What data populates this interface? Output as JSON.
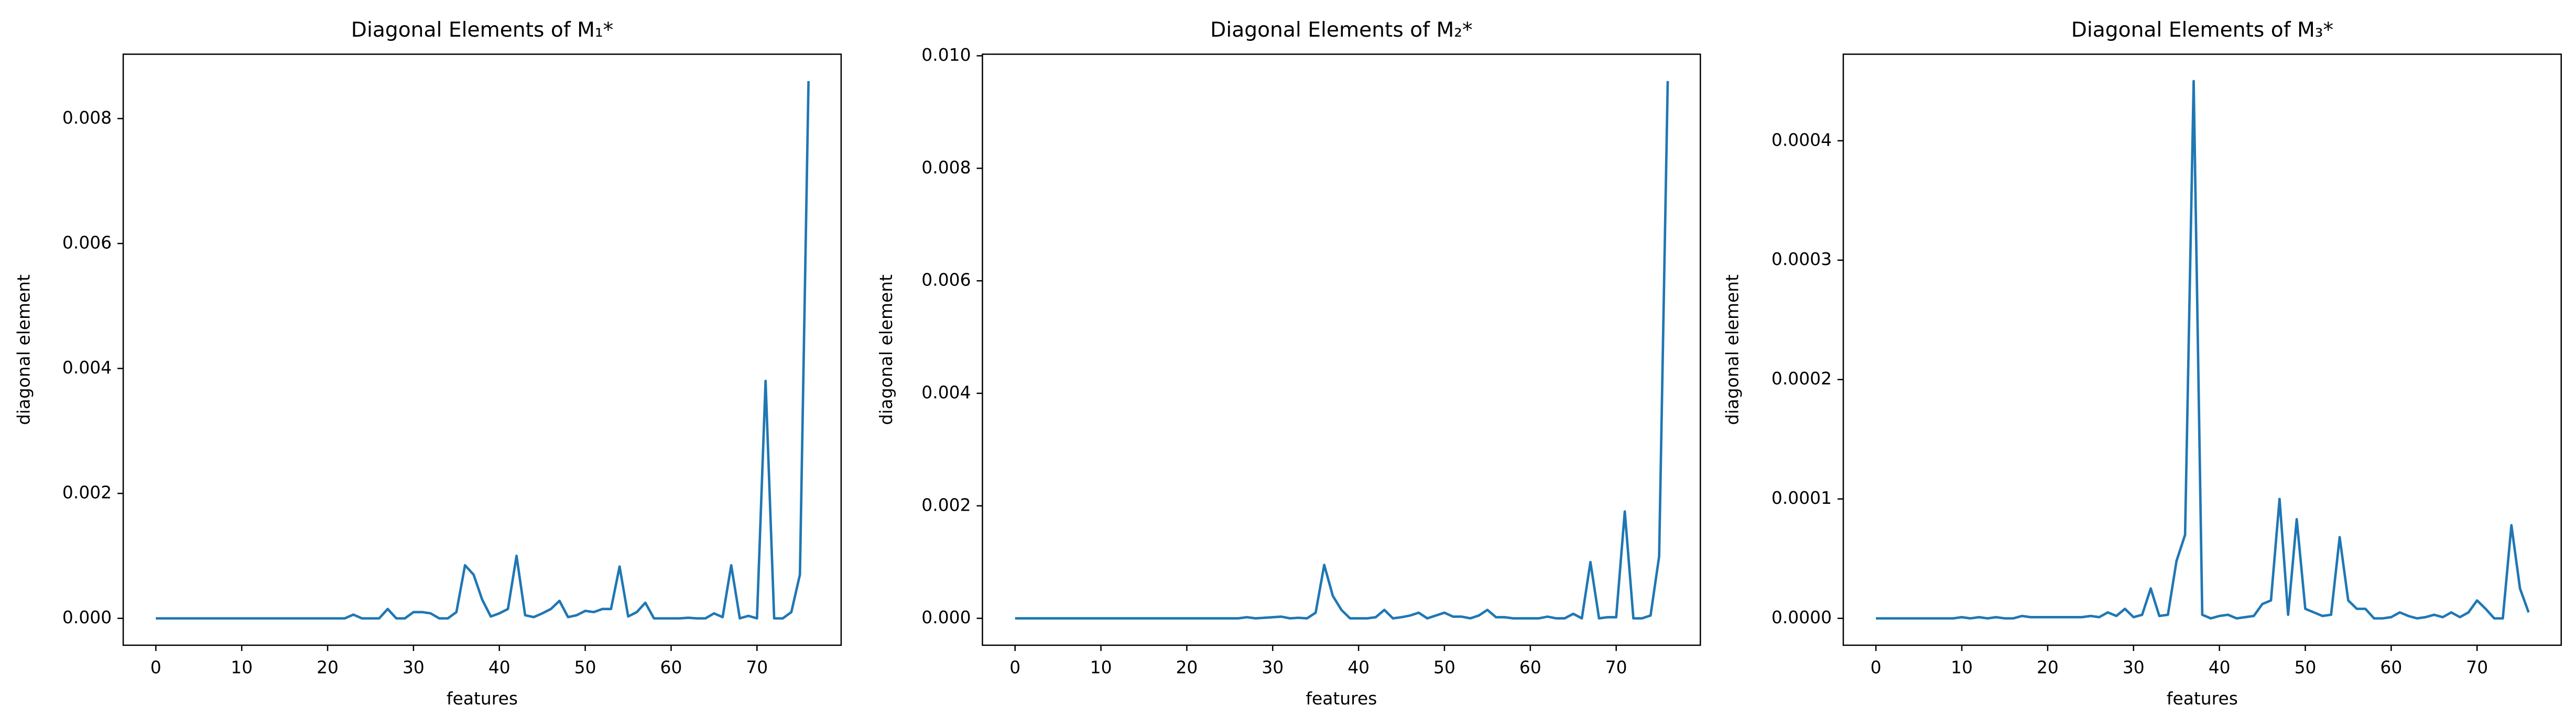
{
  "chart_data": [
    {
      "type": "line",
      "title": "Diagonal Elements of M₁*",
      "xlabel": "features",
      "ylabel": "diagonal element",
      "color": "#1f77b4",
      "x": [
        0,
        1,
        2,
        3,
        4,
        5,
        6,
        7,
        8,
        9,
        10,
        11,
        12,
        13,
        14,
        15,
        16,
        17,
        18,
        19,
        20,
        21,
        22,
        23,
        24,
        25,
        26,
        27,
        28,
        29,
        30,
        31,
        32,
        33,
        34,
        35,
        36,
        37,
        38,
        39,
        40,
        41,
        42,
        43,
        44,
        45,
        46,
        47,
        48,
        49,
        50,
        51,
        52,
        53,
        54,
        55,
        56,
        57,
        58,
        59,
        60,
        61,
        62,
        63,
        64,
        65,
        66,
        67,
        68,
        69,
        70,
        71,
        72,
        73,
        74,
        75,
        76
      ],
      "values": [
        0,
        0,
        0,
        0,
        0,
        0,
        0,
        0,
        0,
        0,
        0,
        0,
        0,
        0,
        0,
        0,
        0,
        0,
        0,
        0,
        0,
        0,
        0,
        6e-05,
        0,
        0,
        0,
        0.00015,
        0,
        0,
        0.0001,
        0.0001,
        8e-05,
        0,
        0,
        0.0001,
        0.00085,
        0.0007,
        0.0003,
        3e-05,
        8e-05,
        0.00015,
        0.001,
        5e-05,
        2e-05,
        8e-05,
        0.00015,
        0.00028,
        2e-05,
        5e-05,
        0.00012,
        0.0001,
        0.00015,
        0.00015,
        0.00083,
        3e-05,
        0.0001,
        0.00025,
        0,
        0,
        0,
        0,
        1e-05,
        0,
        0,
        8e-05,
        2e-05,
        0.00085,
        0,
        4e-05,
        0,
        0.0038,
        0,
        0,
        0.0001,
        0.0007,
        0.0086
      ],
      "xlim": [
        -3.8,
        79.8
      ],
      "xticks": [
        0,
        10,
        20,
        30,
        40,
        50,
        60,
        70
      ],
      "ylim": [
        -0.00043,
        0.00903
      ],
      "yticks": [
        {
          "value": 0,
          "label": "0.000"
        },
        0.002,
        0.004,
        0.006,
        0.008
      ]
    },
    {
      "type": "line",
      "title": "Diagonal Elements of M₂*",
      "xlabel": "features",
      "ylabel": "diagonal element",
      "color": "#1f77b4",
      "x": [
        0,
        1,
        2,
        3,
        4,
        5,
        6,
        7,
        8,
        9,
        10,
        11,
        12,
        13,
        14,
        15,
        16,
        17,
        18,
        19,
        20,
        21,
        22,
        23,
        24,
        25,
        26,
        27,
        28,
        29,
        30,
        31,
        32,
        33,
        34,
        35,
        36,
        37,
        38,
        39,
        40,
        41,
        42,
        43,
        44,
        45,
        46,
        47,
        48,
        49,
        50,
        51,
        52,
        53,
        54,
        55,
        56,
        57,
        58,
        59,
        60,
        61,
        62,
        63,
        64,
        65,
        66,
        67,
        68,
        69,
        70,
        71,
        72,
        73,
        74,
        75,
        76
      ],
      "values": [
        0,
        0,
        0,
        0,
        0,
        0,
        0,
        0,
        0,
        0,
        0,
        0,
        0,
        0,
        0,
        0,
        0,
        0,
        0,
        0,
        0,
        0,
        0,
        0,
        0,
        0,
        0,
        2e-05,
        0,
        1e-05,
        2e-05,
        3e-05,
        0,
        1e-05,
        0,
        0.0001,
        0.00095,
        0.0004,
        0.00015,
        0,
        0,
        0,
        2e-05,
        0.00015,
        0,
        2e-05,
        5e-05,
        0.0001,
        0,
        5e-05,
        0.0001,
        3e-05,
        3e-05,
        0,
        5e-05,
        0.00015,
        2e-05,
        2e-05,
        0,
        0,
        0,
        0,
        3e-05,
        0,
        0,
        8e-05,
        0,
        0.001,
        0,
        2e-05,
        2e-05,
        0.0019,
        0,
        0,
        5e-05,
        0.0011,
        0.00955
      ],
      "xlim": [
        -3.8,
        79.8
      ],
      "xticks": [
        0,
        10,
        20,
        30,
        40,
        50,
        60,
        70
      ],
      "ylim": [
        -0.000478,
        0.010028
      ],
      "yticks": [
        {
          "value": 0,
          "label": "0.000"
        },
        0.002,
        0.004,
        0.006,
        0.008,
        {
          "value": 0.01,
          "label": "0.010"
        }
      ]
    },
    {
      "type": "line",
      "title": "Diagonal Elements of M₃*",
      "xlabel": "features",
      "ylabel": "diagonal element",
      "color": "#1f77b4",
      "x": [
        0,
        1,
        2,
        3,
        4,
        5,
        6,
        7,
        8,
        9,
        10,
        11,
        12,
        13,
        14,
        15,
        16,
        17,
        18,
        19,
        20,
        21,
        22,
        23,
        24,
        25,
        26,
        27,
        28,
        29,
        30,
        31,
        32,
        33,
        34,
        35,
        36,
        37,
        38,
        39,
        40,
        41,
        42,
        43,
        44,
        45,
        46,
        47,
        48,
        49,
        50,
        51,
        52,
        53,
        54,
        55,
        56,
        57,
        58,
        59,
        60,
        61,
        62,
        63,
        64,
        65,
        66,
        67,
        68,
        69,
        70,
        71,
        72,
        73,
        74,
        75,
        76
      ],
      "values": [
        0,
        0,
        0,
        0,
        0,
        0,
        0,
        0,
        0,
        0,
        1e-06,
        0,
        1e-06,
        0,
        1e-06,
        0,
        0,
        2e-06,
        1e-06,
        1e-06,
        1e-06,
        1e-06,
        1e-06,
        1e-06,
        1e-06,
        2e-06,
        1e-06,
        5e-06,
        2e-06,
        8e-06,
        1e-06,
        3e-06,
        2.5e-05,
        2e-06,
        3e-06,
        4.8e-05,
        7e-05,
        0.00045,
        3e-06,
        0,
        2e-06,
        3e-06,
        0,
        1e-06,
        2e-06,
        1.2e-05,
        1.5e-05,
        0.0001,
        3e-06,
        8.3e-05,
        8e-06,
        5e-06,
        2e-06,
        3e-06,
        6.8e-05,
        1.5e-05,
        8e-06,
        8e-06,
        0,
        0,
        1e-06,
        5e-06,
        2e-06,
        0,
        1e-06,
        3e-06,
        1e-06,
        5e-06,
        1e-06,
        5e-06,
        1.5e-05,
        8e-06,
        0,
        0,
        7.8e-05,
        2.5e-05,
        5e-06
      ],
      "xlim": [
        -3.8,
        79.8
      ],
      "xticks": [
        0,
        10,
        20,
        30,
        40,
        50,
        60,
        70
      ],
      "ylim": [
        -2.25e-05,
        0.0004725
      ],
      "yticks": [
        {
          "value": 0,
          "label": "0.0000"
        },
        0.0001,
        0.0002,
        0.0003,
        0.0004
      ]
    }
  ]
}
